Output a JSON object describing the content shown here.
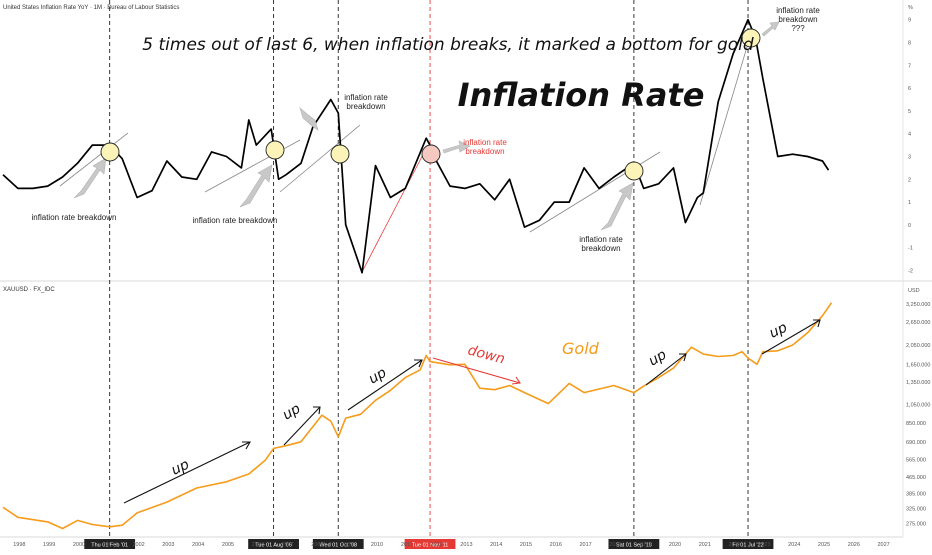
{
  "header": {
    "top_title": "United States Inflation Rate YoY · 1M · Bureau of Labour Statistics",
    "bottom_title": "XAUUSD · FX_IDC",
    "unit_top": "%",
    "unit_bottom": "USD"
  },
  "annotations": {
    "headline": "5 times out of last 6, when inflation breaks, it marked a bottom for gold",
    "inflation_label": "Inflation Rate",
    "gold_label": "Gold",
    "breakdown1": "inflation rate breakdown",
    "breakdown2": "inflation rate breakdown",
    "breakdown3_l1": "inflation rate",
    "breakdown3_l2": "breakdown",
    "breakdown4_l1": "inflation rate",
    "breakdown4_l2": "breakdown",
    "breakdown5_l1": "inflation rate",
    "breakdown5_l2": "breakdown",
    "breakdown6_l1": "inflation rate",
    "breakdown6_l2": "breakdown",
    "breakdown6_l3": "???",
    "up": "up",
    "down": "down"
  },
  "event_labels": [
    "Thu 01 Feb '01",
    "Tue 01 Aug '06",
    "Wed 01 Oct '08",
    "Tue 01 Nov '11",
    "Sat 01 Sep '18",
    "Fri 01 Jul '22"
  ],
  "event_years": [
    2001.08,
    2006.58,
    2008.75,
    2011.83,
    2018.67,
    2022.5
  ],
  "event_colors": [
    "#222222",
    "#222222",
    "#222222",
    "#e53935",
    "#222222",
    "#222222"
  ],
  "x_ticks": [
    "1998",
    "1999",
    "2000",
    "2001",
    "2002",
    "2003",
    "2004",
    "2005",
    "2006",
    "2007",
    "2008",
    "2009",
    "2010",
    "2011",
    "2012",
    "2013",
    "2014",
    "2015",
    "2016",
    "2017",
    "2018",
    "2019",
    "2020",
    "2021",
    "2022",
    "2023",
    "2024",
    "2025",
    "2026",
    "2027"
  ],
  "y_ticks_inflation": [
    "9",
    "8",
    "7",
    "6",
    "5",
    "4",
    "3",
    "2",
    "1",
    "0",
    "-1",
    "-2"
  ],
  "y_ticks_gold": [
    "3,250.000",
    "2,650.000",
    "2,050.000",
    "1,650.000",
    "1,350.000",
    "1,050.000",
    "850.000",
    "690.000",
    "565.000",
    "465.000",
    "385.000",
    "325.000",
    "275.000"
  ],
  "colors": {
    "gold": "#f59c1a",
    "inflation": "#000000",
    "accent_red": "#e53935",
    "circle_fill": "#fbf3b8"
  },
  "chart_data": [
    {
      "type": "line",
      "title": "United States Inflation Rate YoY",
      "ylabel": "%",
      "ylim": [
        -2,
        9.5
      ],
      "x": [
        1997.5,
        1998.0,
        1998.5,
        1999.0,
        1999.5,
        2000.0,
        2000.5,
        2001.08,
        2001.5,
        2002.0,
        2002.5,
        2003.0,
        2003.5,
        2004.0,
        2004.5,
        2005.0,
        2005.5,
        2005.75,
        2006.0,
        2006.5,
        2006.75,
        2007.0,
        2007.5,
        2007.9,
        2008.5,
        2008.75,
        2009.0,
        2009.55,
        2010.0,
        2010.5,
        2011.0,
        2011.7,
        2011.83,
        2012.0,
        2012.5,
        2013.0,
        2013.5,
        2014.0,
        2014.5,
        2015.0,
        2015.5,
        2016.0,
        2016.5,
        2017.0,
        2017.5,
        2018.0,
        2018.67,
        2019.0,
        2019.5,
        2020.0,
        2020.4,
        2020.8,
        2021.0,
        2021.5,
        2022.0,
        2022.5,
        2022.75,
        2023.0,
        2023.5,
        2024.0,
        2024.5,
        2025.0,
        2025.2
      ],
      "y": [
        2.2,
        1.6,
        1.6,
        1.7,
        2.1,
        2.7,
        3.5,
        3.5,
        2.9,
        1.2,
        1.5,
        2.8,
        2.1,
        2.0,
        3.2,
        3.0,
        2.5,
        4.6,
        3.5,
        4.2,
        2.0,
        2.2,
        2.7,
        4.3,
        5.5,
        4.9,
        0.0,
        -2.1,
        2.6,
        1.2,
        1.6,
        3.8,
        3.5,
        2.9,
        1.7,
        1.6,
        1.8,
        1.1,
        2.0,
        -0.1,
        0.2,
        1.0,
        1.0,
        2.5,
        1.6,
        2.1,
        2.7,
        1.6,
        1.8,
        2.5,
        0.1,
        1.2,
        1.4,
        5.4,
        7.5,
        9.0,
        8.2,
        6.4,
        3.0,
        3.1,
        3.0,
        2.8,
        2.4
      ]
    },
    {
      "type": "line",
      "title": "XAUUSD",
      "ylabel": "USD",
      "ylim": [
        250,
        3400
      ],
      "x": [
        1997.5,
        1998.0,
        1999.0,
        1999.5,
        2000.0,
        2000.5,
        2001.08,
        2001.5,
        2002.0,
        2003.0,
        2004.0,
        2005.0,
        2005.75,
        2006.3,
        2006.58,
        2007.0,
        2007.5,
        2008.2,
        2008.5,
        2008.75,
        2009.0,
        2009.5,
        2010.0,
        2010.5,
        2011.0,
        2011.5,
        2011.7,
        2011.83,
        2012.5,
        2013.0,
        2013.5,
        2014.0,
        2014.5,
        2015.0,
        2015.8,
        2016.5,
        2017.0,
        2018.0,
        2018.67,
        2019.0,
        2019.5,
        2020.0,
        2020.6,
        2021.0,
        2021.5,
        2022.0,
        2022.3,
        2022.5,
        2022.8,
        2023.0,
        2023.5,
        2024.0,
        2024.5,
        2025.0,
        2025.3
      ],
      "y": [
        330,
        295,
        280,
        260,
        285,
        272,
        265,
        270,
        310,
        350,
        410,
        440,
        480,
        560,
        640,
        660,
        690,
        930,
        870,
        730,
        900,
        940,
        1100,
        1230,
        1420,
        1550,
        1820,
        1700,
        1640,
        1650,
        1260,
        1240,
        1300,
        1200,
        1060,
        1330,
        1200,
        1300,
        1200,
        1290,
        1420,
        1580,
        2000,
        1850,
        1800,
        1820,
        1900,
        1770,
        1650,
        1900,
        1920,
        2050,
        2350,
        2850,
        3300
      ]
    }
  ]
}
